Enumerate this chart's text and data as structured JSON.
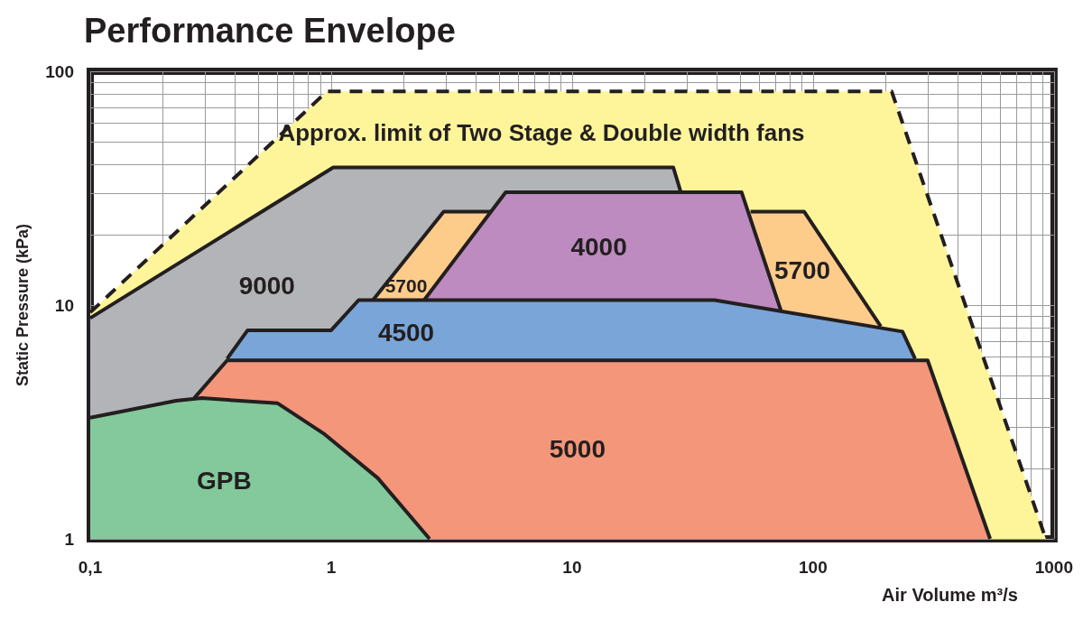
{
  "chart_data": {
    "type": "area",
    "title": "Performance Envelope",
    "xlabel": "Air Volume m³/s",
    "ylabel": "Static Pressure (kPa)",
    "log": "xy",
    "grid": true,
    "legend": false,
    "marker": "none",
    "xlim": [
      0.1,
      1000
    ],
    "xticks": [
      {
        "value": 0.1,
        "label": "0,1"
      },
      1,
      10,
      100,
      1000
    ],
    "ylim": [
      1,
      100
    ],
    "yticks": [
      1,
      10,
      100
    ],
    "series": [
      {
        "color": "#fef59a",
        "line_style": "dashed",
        "x": [
          0.1,
          0.96,
          212,
          925
        ],
        "values": [
          9.3,
          82,
          82,
          1
        ]
      },
      {
        "name": "9000",
        "color": "#b3b4b8",
        "line_style": "solid",
        "x": [
          0.1,
          1.02,
          26.3,
          28.2
        ],
        "values": [
          8.8,
          38.8,
          38.8,
          30.6
        ]
      },
      {
        "name": "5700",
        "color": "#fdcc8a",
        "line_style": "solid",
        "x": [
          1.49,
          2.93,
          4.6
        ],
        "values": [
          10.5,
          25.1,
          25.1
        ]
      },
      {
        "name": "5700",
        "color": "#fdcc8a",
        "line_style": "solid",
        "x": [
          55,
          91.8,
          191
        ],
        "values": [
          25.1,
          25.1,
          8.1
        ]
      },
      {
        "name": "4000",
        "color": "#bd8bbf",
        "line_style": "solid",
        "x": [
          2.43,
          5.3,
          50.5,
          73.5
        ],
        "values": [
          10.5,
          30.4,
          30.4,
          9.5
        ]
      },
      {
        "name": "4500",
        "color": "#7aa5d8",
        "line_style": "solid",
        "x": [
          0.37,
          0.45,
          1.0,
          1.3,
          39,
          235,
          265
        ],
        "values": [
          5.9,
          7.8,
          7.8,
          10.5,
          10.5,
          7.7,
          5.9
        ]
      },
      {
        "name": "5000",
        "color": "#f4967a",
        "line_style": "solid",
        "x": [
          0.27,
          0.37,
          299,
          543
        ],
        "values": [
          4.0,
          5.8,
          5.8,
          1
        ]
      },
      {
        "name": "GPB",
        "color": "#83c99b",
        "line_style": "solid",
        "x": [
          0.1,
          0.227,
          0.29,
          0.6,
          0.94,
          1.56,
          2.56
        ],
        "values": [
          3.3,
          3.9,
          4.0,
          3.8,
          2.8,
          1.82,
          1
        ]
      }
    ],
    "annotations": [
      "Approx. limit of Two Stage & Double width fans"
    ]
  }
}
